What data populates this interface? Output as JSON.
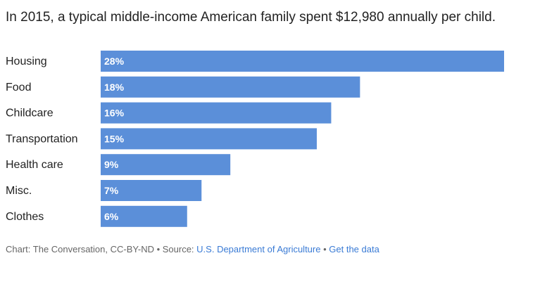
{
  "chart_data": {
    "type": "bar",
    "orientation": "horizontal",
    "title": "In 2015, a typical middle-income American family spent $12,980 annually per child.",
    "categories": [
      "Housing",
      "Food",
      "Childcare",
      "Transportation",
      "Health care",
      "Misc.",
      "Clothes"
    ],
    "values": [
      28,
      18,
      16,
      15,
      9,
      7,
      6
    ],
    "value_labels": [
      "28%",
      "18%",
      "16%",
      "15%",
      "9%",
      "7%",
      "6%"
    ],
    "xlim": [
      0,
      28
    ],
    "grid": false,
    "bar_color": "#5b8fd9",
    "xlabel": "",
    "ylabel": ""
  },
  "footer": {
    "prefix": "Chart: The Conversation, CC-BY-ND • Source: ",
    "source_link": "U.S. Department of Agriculture",
    "separator": " • ",
    "data_link": "Get the data"
  }
}
